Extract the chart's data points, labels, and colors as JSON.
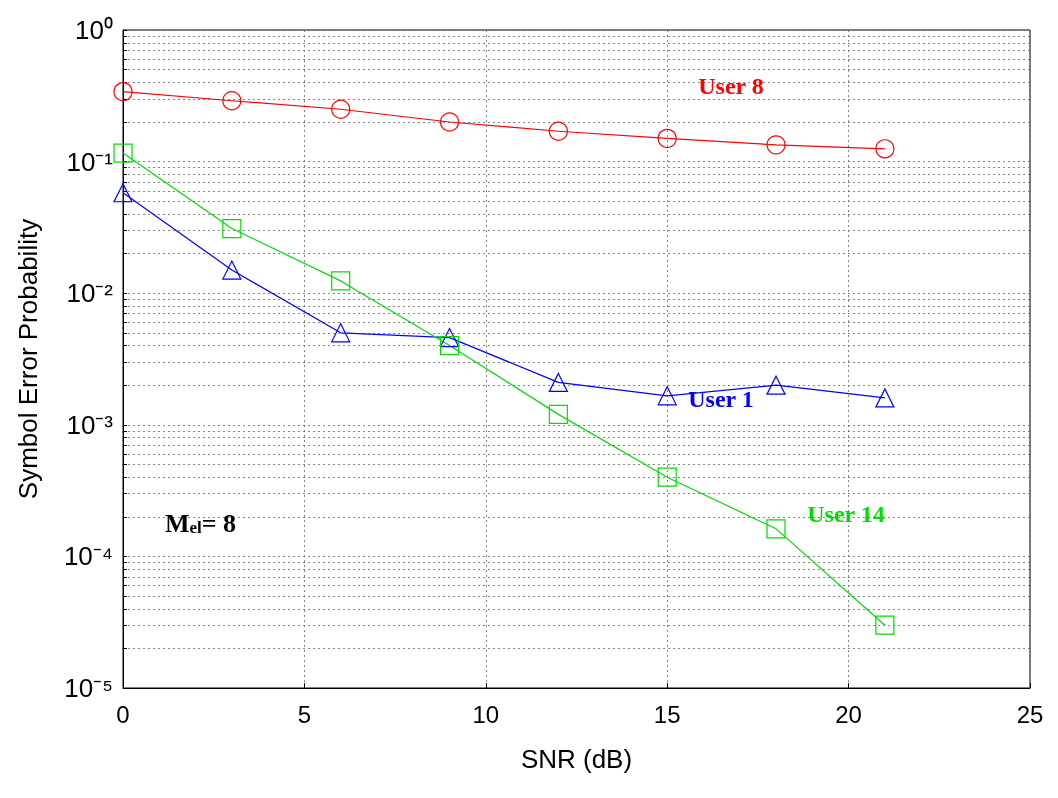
{
  "chart_data": {
    "type": "line",
    "xlabel": "SNR (dB)",
    "ylabel": "Symbol Error Probability",
    "log": "y",
    "grid": true,
    "legend": false,
    "line_style": "solid",
    "x": [
      0,
      3,
      6,
      9,
      12,
      15,
      18,
      21
    ],
    "xlim": [
      0,
      25
    ],
    "xticks": [
      0,
      5,
      10,
      15,
      20,
      25
    ],
    "ylim": [
      1e-05,
      1
    ],
    "yticks": [
      {
        "value": 1e-05,
        "label": "10⁻⁵"
      },
      {
        "value": 0.0001,
        "label": "10⁻⁴"
      },
      {
        "value": 0.001,
        "label": "10⁻³"
      },
      {
        "value": 0.01,
        "label": "10⁻²"
      },
      {
        "value": 0.1,
        "label": "10⁻¹"
      },
      {
        "value": 1,
        "label": "10⁰"
      }
    ],
    "series": [
      {
        "name": "User 8",
        "color": "#ff0000",
        "marker": "circle",
        "values": [
          0.34,
          0.29,
          0.25,
          0.2,
          0.17,
          0.15,
          0.134,
          0.125
        ]
      },
      {
        "name": "User 1",
        "color": "#0000ff",
        "marker": "triangle",
        "values": [
          0.058,
          0.015,
          0.005,
          0.0046,
          0.0021,
          0.00166,
          0.002,
          0.0016
        ]
      },
      {
        "name": "User 14",
        "color": "#00dd00",
        "marker": "square",
        "values": [
          0.116,
          0.031,
          0.0124,
          0.004,
          0.0012,
          0.0004,
          0.000162,
          3e-05
        ]
      }
    ],
    "annotations": [
      "M$_{el}$= 8"
    ]
  }
}
